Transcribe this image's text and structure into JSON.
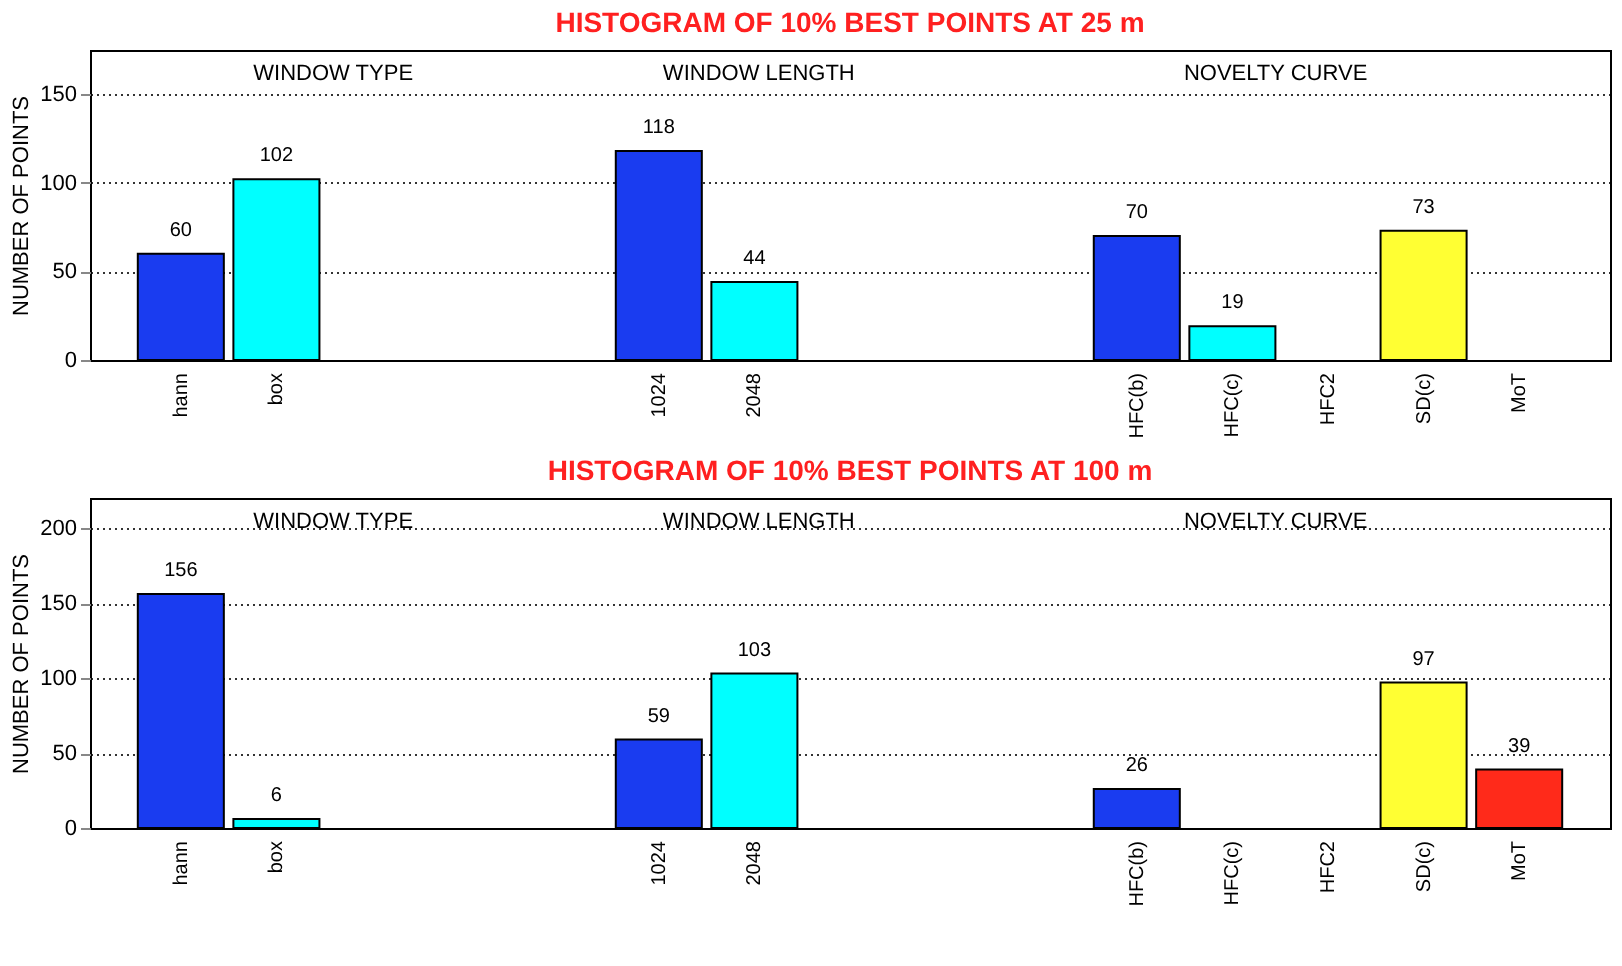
{
  "chart_data": [
    {
      "type": "bar",
      "title": "HISTOGRAM OF 10% BEST POINTS AT 25 m",
      "ylabel": "NUMBER OF POINTS",
      "categories": [
        "hann",
        "box",
        null,
        null,
        null,
        "1024",
        "2048",
        null,
        null,
        null,
        "HFC(b)",
        "HFC(c)",
        "HFC2",
        "SD(c)",
        "MoT"
      ],
      "values": [
        60,
        102,
        null,
        null,
        null,
        118,
        44,
        null,
        null,
        null,
        70,
        19,
        null,
        73,
        null
      ],
      "colors": [
        "#1a3cf0",
        "#00ffff",
        "#1a3cf0",
        "#1a3cf0",
        "#1a3cf0",
        "#1a3cf0",
        "#00ffff",
        "#1a3cf0",
        "#1a3cf0",
        "#1a3cf0",
        "#1a3cf0",
        "#00ffff",
        "#00ffff",
        "#ffff33",
        "#ff2a1a"
      ],
      "annotations": [
        "WINDOW TYPE",
        "WINDOW LENGTH",
        "NOVELTY CURVE"
      ],
      "ylim": [
        0,
        175
      ],
      "yticks": [
        0,
        50,
        100,
        150
      ],
      "grid": "y",
      "data_labels": true
    },
    {
      "type": "bar",
      "title": "HISTOGRAM OF 10% BEST POINTS AT 100 m",
      "ylabel": "NUMBER OF POINTS",
      "categories": [
        "hann",
        "box",
        null,
        null,
        null,
        "1024",
        "2048",
        null,
        null,
        null,
        "HFC(b)",
        "HFC(c)",
        "HFC2",
        "SD(c)",
        "MoT"
      ],
      "values": [
        156,
        6,
        null,
        null,
        null,
        59,
        103,
        null,
        null,
        null,
        26,
        null,
        null,
        97,
        39
      ],
      "colors": [
        "#1a3cf0",
        "#00ffff",
        "#1a3cf0",
        "#1a3cf0",
        "#1a3cf0",
        "#1a3cf0",
        "#00ffff",
        "#1a3cf0",
        "#1a3cf0",
        "#1a3cf0",
        "#1a3cf0",
        "#00ffff",
        "#00ffff",
        "#ffff33",
        "#ff2a1a"
      ],
      "annotations": [
        "WINDOW TYPE",
        "WINDOW LENGTH",
        "NOVELTY CURVE"
      ],
      "ylim": [
        0,
        220
      ],
      "yticks": [
        0,
        50,
        100,
        150,
        200
      ],
      "grid": "y",
      "data_labels": true
    }
  ]
}
